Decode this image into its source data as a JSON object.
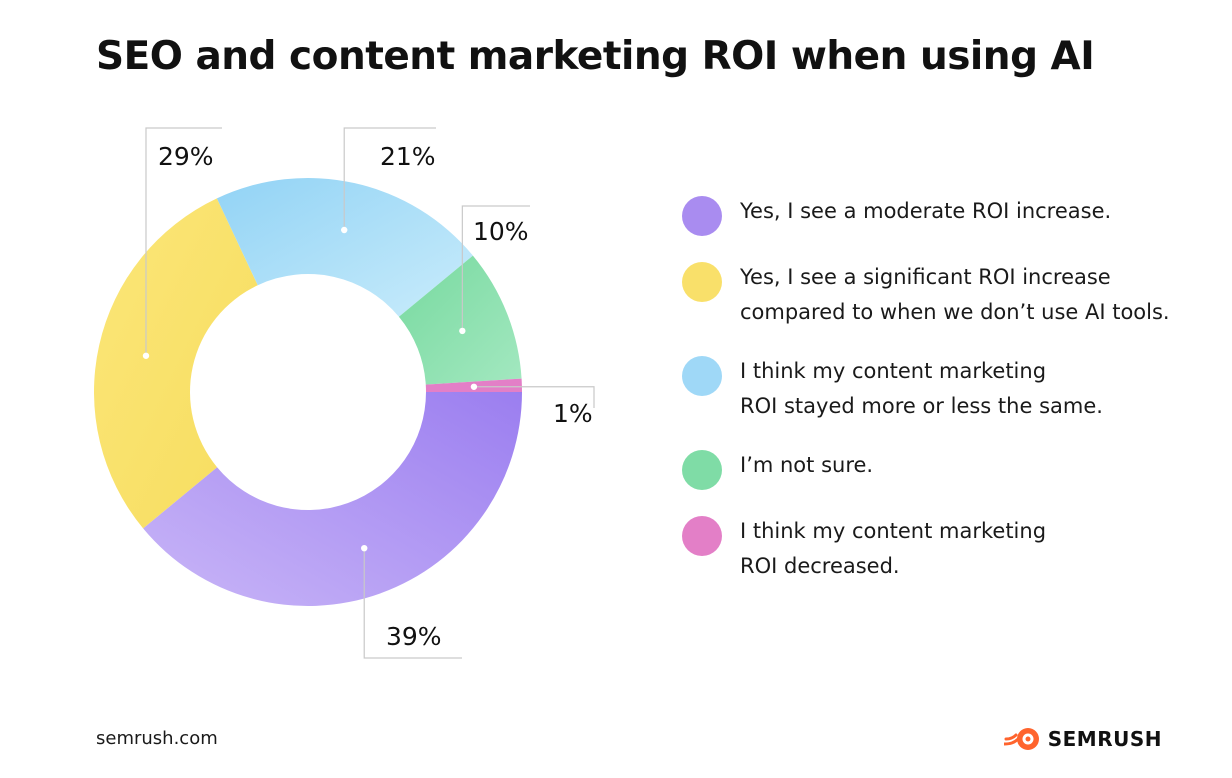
{
  "title": "SEO and content marketing ROI when using AI",
  "chart_data": {
    "type": "pie",
    "variant": "donut",
    "title": "SEO and content marketing ROI when using AI",
    "slices": [
      {
        "name": "Yes, I see a moderate ROI increase.",
        "value": 39,
        "label": "39%",
        "color": "#a98cf0"
      },
      {
        "name": "Yes, I see a significant ROI increase compared to when we don’t use AI tools.",
        "value": 29,
        "label": "29%",
        "color": "#f9e06a"
      },
      {
        "name": "I think my content marketing ROI stayed more or less the same.",
        "value": 21,
        "label": "21%",
        "color": "#9fd8f7"
      },
      {
        "name": "I’m not sure.",
        "value": 10,
        "label": "10%",
        "color": "#7fdca6"
      },
      {
        "name": "I think my content marketing ROI decreased.",
        "value": 1,
        "label": "1%",
        "color": "#e37fc7"
      }
    ],
    "legend_position": "right"
  },
  "legend": [
    {
      "lines": [
        "Yes, I see a moderate ROI increase."
      ],
      "color": "#a98cf0"
    },
    {
      "lines": [
        "Yes, I see a significant ROI increase",
        "compared to when we don’t use AI tools."
      ],
      "color": "#f9e06a"
    },
    {
      "lines": [
        "I think my content marketing",
        "ROI stayed more or less the same."
      ],
      "color": "#9fd8f7"
    },
    {
      "lines": [
        "I’m not sure."
      ],
      "color": "#7fdca6"
    },
    {
      "lines": [
        "I think my content marketing",
        "ROI decreased."
      ],
      "color": "#e37fc7"
    }
  ],
  "footer": {
    "source": "semrush.com",
    "brand": "SEMRUSH",
    "brand_icon": "semrush-fire-icon",
    "brand_color": "#ff642d"
  }
}
